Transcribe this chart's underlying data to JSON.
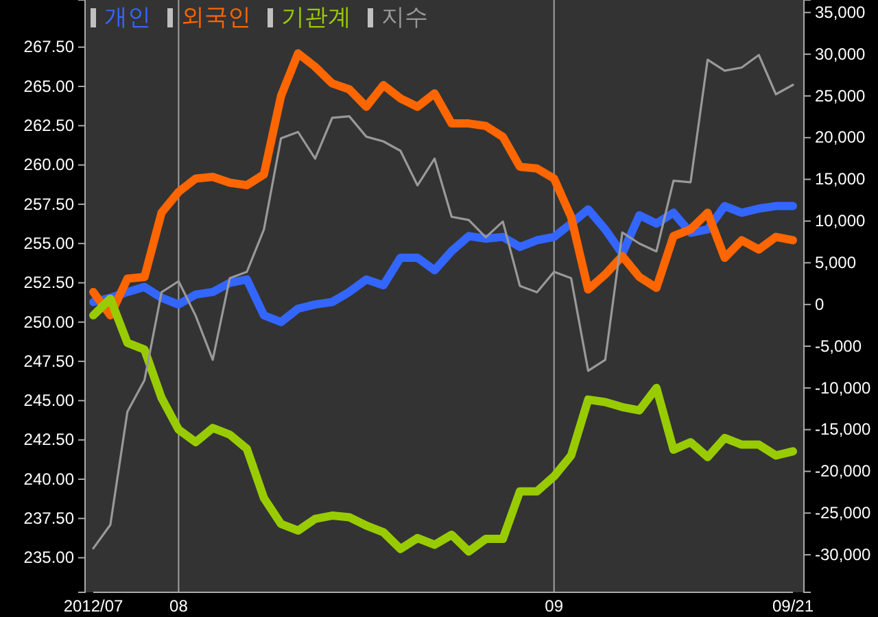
{
  "chart_data": {
    "type": "line",
    "categories": [
      "2012/07",
      null,
      null,
      null,
      null,
      "08",
      null,
      null,
      null,
      null,
      null,
      null,
      null,
      null,
      null,
      null,
      null,
      null,
      null,
      null,
      null,
      null,
      null,
      null,
      null,
      null,
      null,
      "09",
      null,
      null,
      null,
      null,
      null,
      null,
      null,
      null,
      null,
      null,
      null,
      null,
      null,
      "09/21"
    ],
    "series": [
      {
        "name": "개인",
        "color": "#3366ff",
        "axis": "y2",
        "values": [
          300,
          800,
          1500,
          2100,
          800,
          0,
          1200,
          1500,
          2600,
          3000,
          -1300,
          -2100,
          -500,
          0,
          300,
          1500,
          3000,
          2300,
          5600,
          5600,
          4100,
          6400,
          8200,
          7900,
          8100,
          6900,
          7700,
          8100,
          9700,
          11400,
          9000,
          6100,
          10700,
          9700,
          11000,
          8600,
          9000,
          11800,
          11000,
          11500,
          11800,
          11800
        ]
      },
      {
        "name": "외국인",
        "color": "#ff6600",
        "axis": "y2",
        "values": [
          1500,
          -1300,
          3100,
          3300,
          11000,
          13500,
          15100,
          15300,
          14600,
          14300,
          15600,
          25000,
          30100,
          28500,
          26500,
          25800,
          23700,
          26300,
          24700,
          23700,
          25300,
          21700,
          21700,
          21400,
          20100,
          16500,
          16300,
          15100,
          10500,
          1800,
          3600,
          5800,
          3300,
          2000,
          8200,
          9000,
          11000,
          5600,
          7700,
          6600,
          8100,
          7700
        ]
      },
      {
        "name": "기관계",
        "color": "#99cc00",
        "axis": "y2",
        "values": [
          -1300,
          700,
          -4600,
          -5400,
          -11200,
          -15000,
          -16500,
          -14800,
          -15600,
          -17300,
          -23200,
          -26300,
          -27100,
          -25700,
          -25300,
          -25500,
          -26500,
          -27300,
          -29300,
          -28000,
          -28800,
          -27600,
          -29600,
          -28100,
          -28100,
          -22400,
          -22400,
          -20600,
          -18100,
          -11400,
          -11700,
          -12300,
          -12700,
          -10000,
          -17400,
          -16500,
          -18300,
          -16000,
          -16800,
          -16800,
          -18100,
          -17600
        ]
      },
      {
        "name": "지수",
        "color": "#999999",
        "axis": "y",
        "values": [
          235.6,
          237.1,
          244.3,
          246.3,
          251.9,
          252.6,
          250.4,
          247.6,
          252.8,
          253.2,
          255.9,
          261.7,
          262.1,
          260.4,
          263.0,
          263.1,
          261.8,
          261.5,
          260.9,
          258.7,
          260.4,
          256.7,
          256.5,
          255.4,
          256.4,
          252.3,
          251.9,
          253.2,
          252.8,
          246.9,
          247.6,
          255.7,
          255.0,
          254.5,
          259.0,
          258.9,
          266.7,
          266.0,
          266.2,
          267.0,
          264.5,
          265.1
        ]
      }
    ],
    "ylim": [
      232.8,
      270.5
    ],
    "yticks": [
      {
        "value": 235,
        "label": "235.00"
      },
      {
        "value": 237.5,
        "label": "237.50"
      },
      {
        "value": 240,
        "label": "240.00"
      },
      {
        "value": 242.5,
        "label": "242.50"
      },
      {
        "value": 245,
        "label": "245.00"
      },
      {
        "value": 247.5,
        "label": "247.50"
      },
      {
        "value": 250,
        "label": "250.00"
      },
      {
        "value": 252.5,
        "label": "252.50"
      },
      {
        "value": 255,
        "label": "255.00"
      },
      {
        "value": 257.5,
        "label": "257.50"
      },
      {
        "value": 260,
        "label": "260.00"
      },
      {
        "value": 262.5,
        "label": "262.50"
      },
      {
        "value": 265,
        "label": "265.00"
      },
      {
        "value": 267.5,
        "label": "267.50"
      }
    ],
    "y2lim": [
      -34500,
      36500
    ],
    "y2ticks": [
      {
        "value": -30000,
        "label": "-30,000"
      },
      {
        "value": -25000,
        "label": "-25,000"
      },
      {
        "value": -20000,
        "label": "-20,000"
      },
      {
        "value": -15000,
        "label": "-15,000"
      },
      {
        "value": -10000,
        "label": "-10,000"
      },
      {
        "value": -5000,
        "label": "-5,000"
      },
      0,
      {
        "value": 5000,
        "label": "5,000"
      },
      {
        "value": 10000,
        "label": "10,000"
      },
      {
        "value": 15000,
        "label": "15,000"
      },
      {
        "value": 20000,
        "label": "20,000"
      },
      {
        "value": 25000,
        "label": "25,000"
      },
      {
        "value": 30000,
        "label": "30,000"
      },
      {
        "value": 35000,
        "label": "35,000"
      }
    ],
    "ref_lines": [
      {
        "axis": "x",
        "value": "08",
        "color": "#a0a0a0"
      },
      {
        "axis": "x",
        "value": "09",
        "color": "#a0a0a0"
      }
    ],
    "legend": "top left",
    "marker": "none",
    "line_style": "solid",
    "grid": false
  }
}
